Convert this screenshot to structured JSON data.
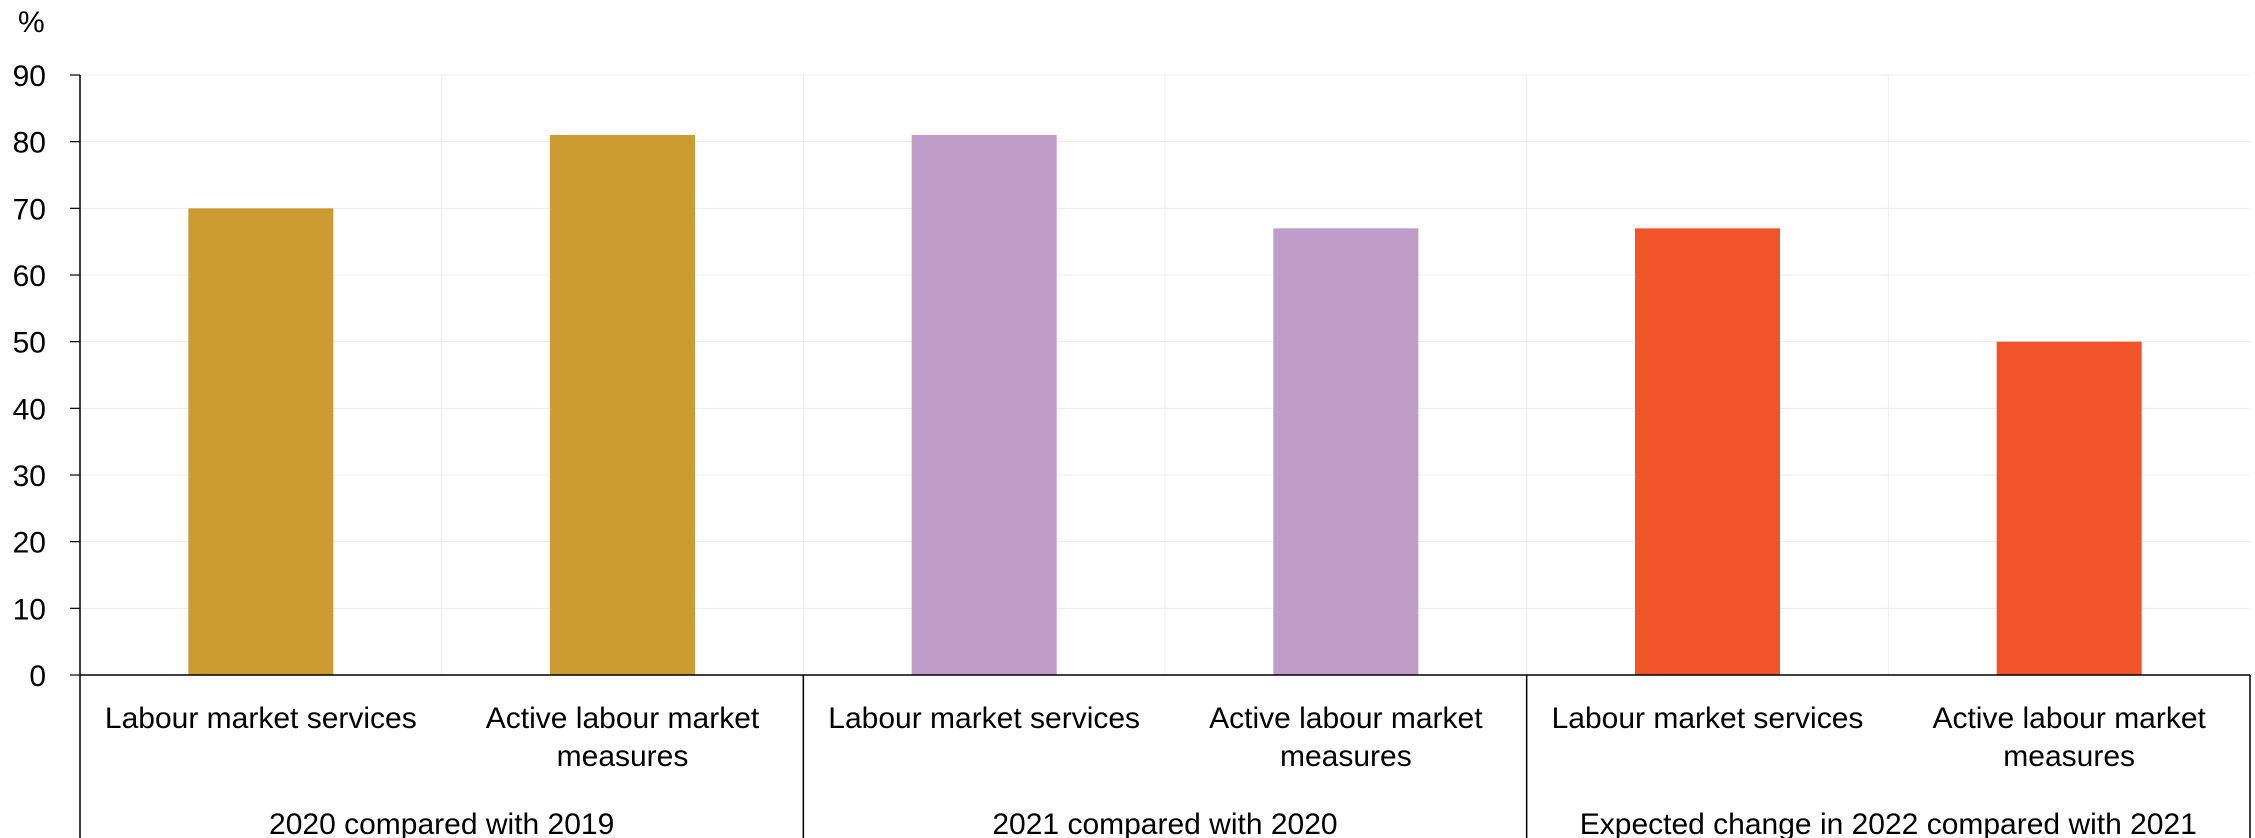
{
  "chart_data": {
    "type": "bar",
    "unit_label": "%",
    "ylim": [
      0,
      90
    ],
    "yticks": [
      0,
      10,
      20,
      30,
      40,
      50,
      60,
      70,
      80,
      90
    ],
    "grid": true,
    "groups": [
      {
        "label": "2020 compared with 2019",
        "color": "#CC9C33",
        "categories": [
          {
            "label_lines": [
              "Labour market services"
            ],
            "value": 70
          },
          {
            "label_lines": [
              "Active labour market",
              "measures"
            ],
            "value": 81
          }
        ]
      },
      {
        "label": "2021 compared with 2020",
        "color": "#C09CC8",
        "categories": [
          {
            "label_lines": [
              "Labour market services"
            ],
            "value": 81
          },
          {
            "label_lines": [
              "Active labour market",
              "measures"
            ],
            "value": 67
          }
        ]
      },
      {
        "label": "Expected change in 2022 compared with 2021",
        "color": "#F05428",
        "categories": [
          {
            "label_lines": [
              "Labour market services"
            ],
            "value": 67
          },
          {
            "label_lines": [
              "Active labour market",
              "measures"
            ],
            "value": 50
          }
        ]
      }
    ]
  }
}
